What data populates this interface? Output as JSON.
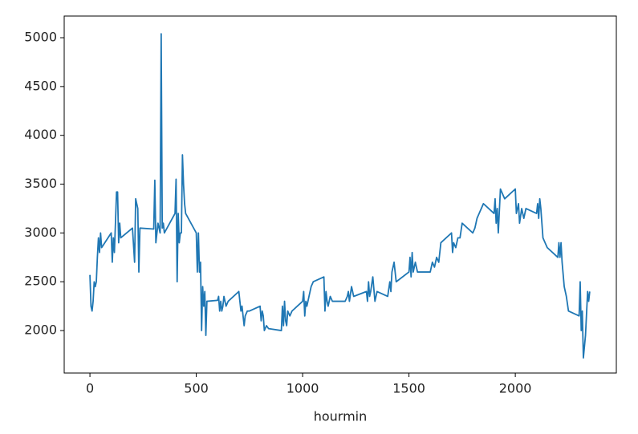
{
  "chart_data": {
    "type": "line",
    "xlabel": "hourmin",
    "color": "#1f77b4",
    "xlim": [
      -121,
      2475
    ],
    "ylim": [
      1565,
      5222
    ],
    "xticks": [
      0,
      500,
      1000,
      1500,
      2000
    ],
    "yticks": [
      2000,
      2500,
      3000,
      3500,
      4000,
      4500,
      5000
    ],
    "x": [
      0,
      5,
      10,
      15,
      20,
      25,
      30,
      35,
      40,
      45,
      50,
      55,
      100,
      105,
      110,
      115,
      120,
      125,
      130,
      135,
      140,
      145,
      200,
      210,
      215,
      220,
      225,
      230,
      235,
      300,
      305,
      310,
      315,
      320,
      325,
      330,
      335,
      340,
      345,
      350,
      400,
      405,
      410,
      415,
      420,
      425,
      430,
      435,
      440,
      445,
      450,
      500,
      505,
      510,
      515,
      520,
      525,
      530,
      535,
      540,
      545,
      550,
      600,
      605,
      610,
      615,
      620,
      625,
      630,
      640,
      650,
      700,
      705,
      710,
      715,
      720,
      725,
      730,
      740,
      750,
      800,
      805,
      810,
      815,
      820,
      830,
      840,
      900,
      905,
      910,
      915,
      920,
      925,
      930,
      940,
      950,
      1000,
      1005,
      1010,
      1015,
      1020,
      1030,
      1040,
      1050,
      1100,
      1105,
      1110,
      1115,
      1120,
      1130,
      1140,
      1200,
      1210,
      1215,
      1220,
      1230,
      1240,
      1300,
      1305,
      1310,
      1315,
      1320,
      1330,
      1340,
      1350,
      1400,
      1410,
      1415,
      1420,
      1430,
      1440,
      1500,
      1505,
      1510,
      1515,
      1520,
      1530,
      1540,
      1550,
      1600,
      1610,
      1620,
      1630,
      1640,
      1650,
      1700,
      1705,
      1710,
      1720,
      1730,
      1740,
      1750,
      1800,
      1810,
      1820,
      1830,
      1840,
      1850,
      1900,
      1905,
      1910,
      1915,
      1920,
      1930,
      1940,
      1950,
      2000,
      2005,
      2010,
      2015,
      2020,
      2030,
      2040,
      2050,
      2100,
      2105,
      2110,
      2115,
      2120,
      2130,
      2140,
      2150,
      2200,
      2205,
      2210,
      2215,
      2220,
      2230,
      2240,
      2250,
      2300,
      2305,
      2310,
      2315,
      2320,
      2330,
      2340,
      2345,
      2350
    ],
    "values": [
      2570,
      2250,
      2200,
      2300,
      2500,
      2450,
      2500,
      2750,
      2950,
      2800,
      3000,
      2850,
      3000,
      2700,
      2950,
      2800,
      3100,
      3420,
      3420,
      2900,
      3100,
      2950,
      3050,
      2700,
      3350,
      3300,
      3250,
      2600,
      3050,
      3040,
      3540,
      2900,
      3000,
      3100,
      3050,
      3000,
      5040,
      3050,
      3100,
      3000,
      3200,
      3550,
      2500,
      3200,
      2900,
      3000,
      3000,
      3800,
      3500,
      3300,
      3200,
      3000,
      2600,
      3000,
      2600,
      2700,
      2000,
      2450,
      2250,
      2400,
      1950,
      2300,
      2310,
      2350,
      2200,
      2300,
      2200,
      2250,
      2350,
      2250,
      2300,
      2400,
      2300,
      2200,
      2250,
      2150,
      2050,
      2150,
      2200,
      2200,
      2250,
      2100,
      2200,
      2150,
      2000,
      2050,
      2020,
      2000,
      2250,
      2050,
      2300,
      2100,
      2050,
      2200,
      2150,
      2200,
      2300,
      2400,
      2150,
      2300,
      2250,
      2350,
      2450,
      2500,
      2550,
      2200,
      2400,
      2300,
      2250,
      2350,
      2300,
      2300,
      2350,
      2400,
      2300,
      2450,
      2350,
      2400,
      2300,
      2500,
      2350,
      2400,
      2550,
      2300,
      2400,
      2350,
      2500,
      2400,
      2600,
      2700,
      2500,
      2600,
      2750,
      2550,
      2800,
      2600,
      2700,
      2600,
      2600,
      2600,
      2700,
      2650,
      2750,
      2700,
      2900,
      3000,
      2800,
      2900,
      2850,
      2950,
      2950,
      3100,
      3000,
      3050,
      3150,
      3200,
      3250,
      3300,
      3200,
      3350,
      3100,
      3250,
      3000,
      3450,
      3400,
      3350,
      3450,
      3200,
      3250,
      3300,
      3100,
      3250,
      3150,
      3250,
      3200,
      3300,
      3150,
      3350,
      3250,
      2950,
      2900,
      2850,
      2750,
      2900,
      2750,
      2900,
      2700,
      2450,
      2350,
      2200,
      2150,
      2500,
      2000,
      2200,
      1720,
      1950,
      2400,
      2300,
      2400
    ]
  }
}
